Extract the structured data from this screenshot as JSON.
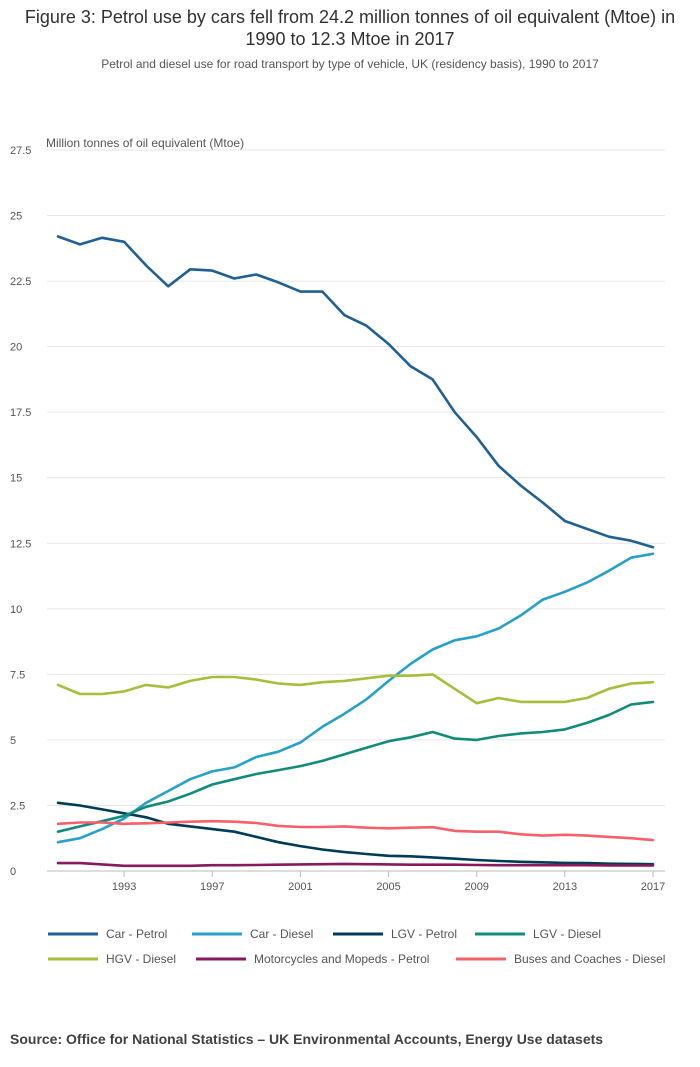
{
  "header": {
    "title": "Figure 3: Petrol use by cars fell from 24.2 million tonnes of oil equivalent (Mtoe) in 1990 to 12.3 Mtoe in 2017",
    "subtitle": "Petrol and diesel use for road transport by type of vehicle, UK (residency basis), 1990 to 2017"
  },
  "footer": {
    "source": "Source: Office for National Statistics – UK Environmental Accounts, Energy Use datasets"
  },
  "chart_data": {
    "type": "line",
    "title": "Figure 3: Petrol use by cars fell from 24.2 million tonnes of oil equivalent (Mtoe) in 1990 to 12.3 Mtoe in 2017",
    "ylabel": "Million tonnes of oil equivalent (Mtoe)",
    "xlabel": "",
    "ylim": [
      0,
      27.5
    ],
    "xlim": [
      1990,
      2017
    ],
    "yticks": [
      0,
      2.5,
      5,
      7.5,
      10,
      12.5,
      15,
      17.5,
      20,
      22.5,
      25,
      27.5
    ],
    "ytick_labels": [
      "0",
      "2.5",
      "5",
      "7.5",
      "10",
      "12.5",
      "15",
      "17.5",
      "20",
      "22.5",
      "25",
      "27.5"
    ],
    "xticks": [
      1993,
      1997,
      2001,
      2005,
      2009,
      2013,
      2017
    ],
    "xtick_labels": [
      "1993",
      "1997",
      "2001",
      "2005",
      "2009",
      "2013",
      "2017"
    ],
    "grid": true,
    "legend_position": "bottom",
    "x": [
      1990,
      1991,
      1992,
      1993,
      1994,
      1995,
      1996,
      1997,
      1998,
      1999,
      2000,
      2001,
      2002,
      2003,
      2004,
      2005,
      2006,
      2007,
      2008,
      2009,
      2010,
      2011,
      2012,
      2013,
      2014,
      2015,
      2016,
      2017
    ],
    "series": [
      {
        "name": "Car - Petrol",
        "color": "#206095",
        "values": [
          24.2,
          23.9,
          24.15,
          24.0,
          23.1,
          22.3,
          22.95,
          22.9,
          22.6,
          22.75,
          22.45,
          22.1,
          22.1,
          21.2,
          20.8,
          20.1,
          19.25,
          18.75,
          17.5,
          16.55,
          15.45,
          14.7,
          14.05,
          13.35,
          13.05,
          12.75,
          12.6,
          12.35
        ]
      },
      {
        "name": "Car - Diesel",
        "color": "#27a0cc",
        "values": [
          1.1,
          1.25,
          1.6,
          2.0,
          2.6,
          3.05,
          3.5,
          3.8,
          3.95,
          4.35,
          4.55,
          4.9,
          5.5,
          6.0,
          6.55,
          7.25,
          7.9,
          8.45,
          8.8,
          8.95,
          9.25,
          9.75,
          10.35,
          10.65,
          11.0,
          11.45,
          11.95,
          12.1
        ]
      },
      {
        "name": "LGV - Petrol",
        "color": "#003c57",
        "values": [
          2.6,
          2.5,
          2.35,
          2.2,
          2.05,
          1.8,
          1.7,
          1.6,
          1.5,
          1.3,
          1.1,
          0.95,
          0.82,
          0.72,
          0.65,
          0.58,
          0.56,
          0.52,
          0.47,
          0.42,
          0.38,
          0.35,
          0.33,
          0.31,
          0.3,
          0.28,
          0.27,
          0.26
        ]
      },
      {
        "name": "LGV - Diesel",
        "color": "#118c7b",
        "values": [
          1.5,
          1.7,
          1.9,
          2.1,
          2.45,
          2.65,
          2.95,
          3.3,
          3.5,
          3.7,
          3.85,
          4.0,
          4.2,
          4.45,
          4.7,
          4.95,
          5.1,
          5.3,
          5.05,
          5.0,
          5.15,
          5.25,
          5.3,
          5.4,
          5.65,
          5.95,
          6.35,
          6.45
        ]
      },
      {
        "name": "HGV - Diesel",
        "color": "#a8bd3a",
        "values": [
          7.1,
          6.75,
          6.75,
          6.85,
          7.1,
          7.0,
          7.25,
          7.4,
          7.4,
          7.3,
          7.15,
          7.1,
          7.2,
          7.25,
          7.35,
          7.45,
          7.45,
          7.5,
          6.95,
          6.4,
          6.6,
          6.45,
          6.45,
          6.45,
          6.6,
          6.95,
          7.15,
          7.2
        ]
      },
      {
        "name": "Motorcycles and Mopeds - Petrol",
        "color": "#871a5b",
        "values": [
          0.3,
          0.3,
          0.25,
          0.2,
          0.2,
          0.2,
          0.2,
          0.22,
          0.22,
          0.23,
          0.24,
          0.25,
          0.26,
          0.27,
          0.26,
          0.25,
          0.24,
          0.24,
          0.24,
          0.23,
          0.22,
          0.22,
          0.22,
          0.22,
          0.22,
          0.21,
          0.21,
          0.21
        ]
      },
      {
        "name": "Buses and Coaches - Diesel",
        "color": "#f66068",
        "values": [
          1.8,
          1.85,
          1.85,
          1.8,
          1.82,
          1.85,
          1.88,
          1.9,
          1.88,
          1.83,
          1.72,
          1.68,
          1.68,
          1.7,
          1.65,
          1.63,
          1.65,
          1.67,
          1.53,
          1.5,
          1.5,
          1.4,
          1.35,
          1.38,
          1.35,
          1.3,
          1.25,
          1.18
        ]
      }
    ]
  }
}
